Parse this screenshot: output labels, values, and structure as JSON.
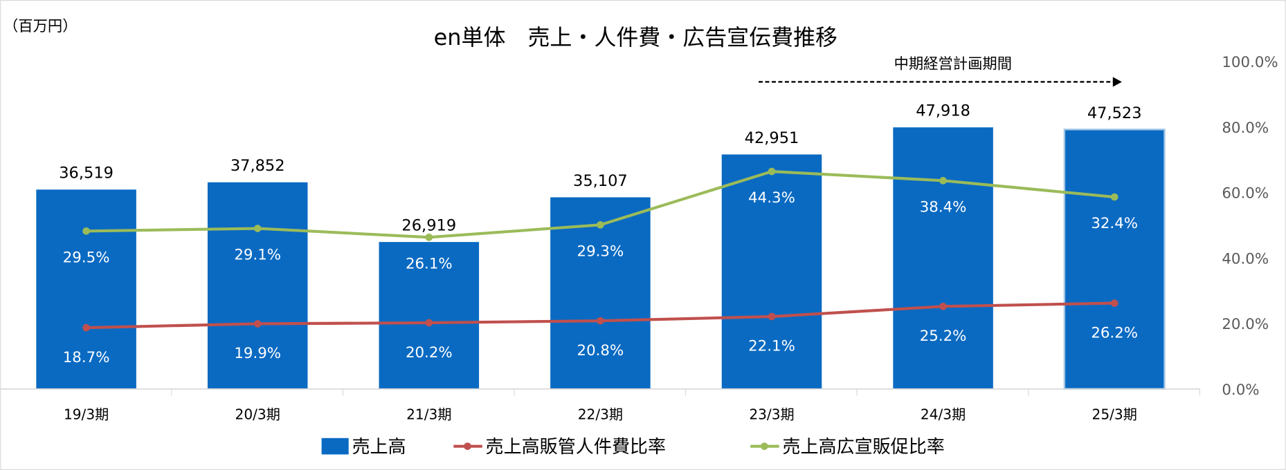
{
  "chart_data": {
    "type": "bar",
    "title": "en単体　売上・人件費・広告宣伝費推移",
    "unit_label": "（百万円）",
    "annotation": "中期経営計画期間",
    "categories": [
      "19/3期",
      "20/3期",
      "21/3期",
      "22/3期",
      "23/3期",
      "24/3期",
      "25/3期"
    ],
    "series": [
      {
        "name": "売上高",
        "type": "bar",
        "axis": "left",
        "values": [
          36519,
          37852,
          26919,
          35107,
          42951,
          47918,
          47523
        ],
        "labels": [
          "36,519",
          "37,852",
          "26,919",
          "35,107",
          "42,951",
          "47,918",
          "47,523"
        ]
      },
      {
        "name": "売上高販管人件費比率",
        "type": "line",
        "axis": "right",
        "values": [
          18.7,
          19.9,
          20.2,
          20.8,
          22.1,
          25.2,
          26.2
        ],
        "labels": [
          "18.7%",
          "19.9%",
          "20.2%",
          "20.8%",
          "22.1%",
          "25.2%",
          "26.2%"
        ]
      },
      {
        "name": "売上高広宣販促比率",
        "type": "line",
        "axis": "right",
        "stacked_on": "売上高販管人件費比率",
        "values": [
          29.5,
          29.1,
          26.1,
          29.3,
          44.3,
          38.4,
          32.4
        ],
        "labels": [
          "29.5%",
          "29.1%",
          "26.1%",
          "29.3%",
          "44.3%",
          "38.4%",
          "32.4%"
        ]
      }
    ],
    "left_ylim": [
      0,
      60000
    ],
    "right_ylim": [
      0,
      100
    ],
    "right_ticks": [
      "0.0%",
      "20.0%",
      "40.0%",
      "60.0%",
      "80.0%",
      "100.0%"
    ],
    "legend_position": "bottom",
    "grid": false
  },
  "colors": {
    "bar": "#0A6AC2",
    "personnel": "#C0504D",
    "advert": "#9BBB59",
    "text": "#000000",
    "axis": "#D9D9D9"
  }
}
